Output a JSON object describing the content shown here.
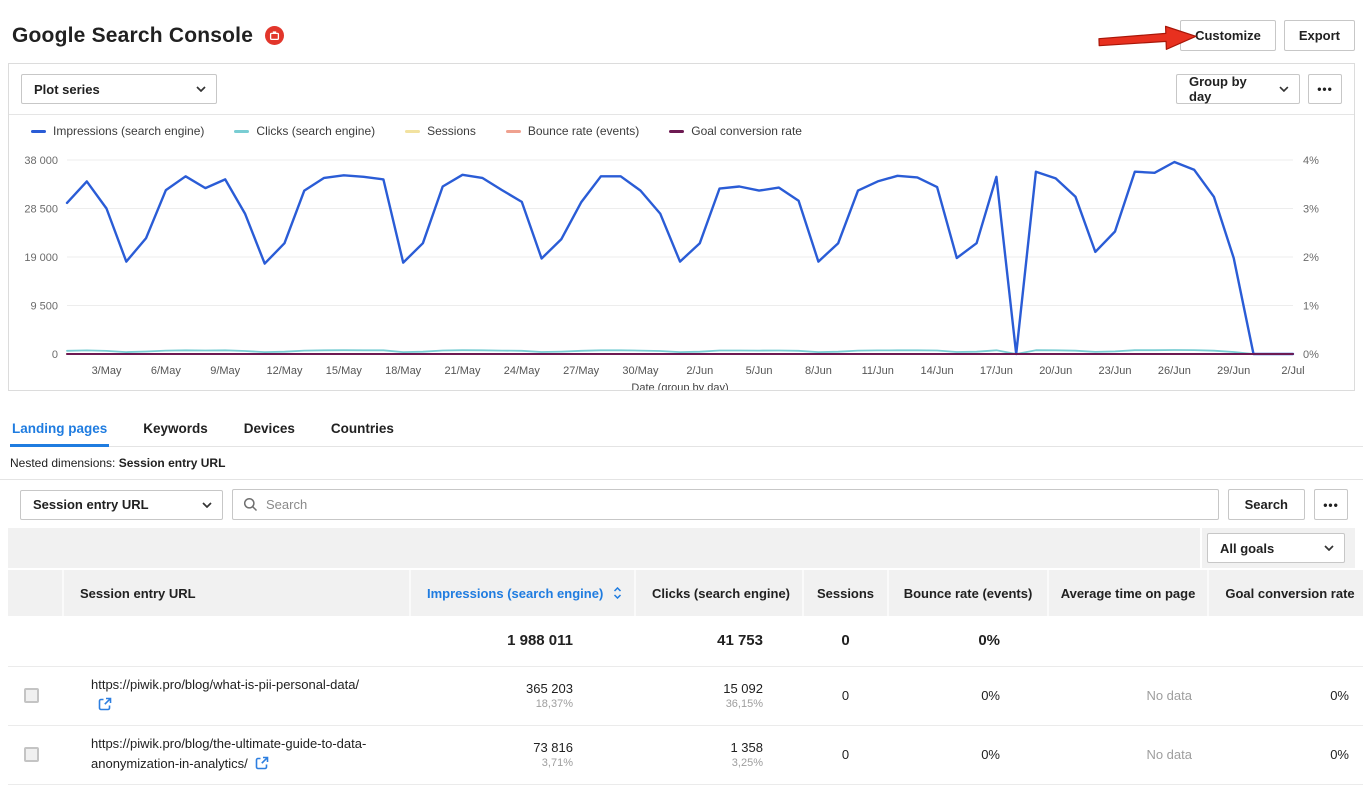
{
  "header": {
    "title": "Google Search Console",
    "customize_label": "Customize",
    "export_label": "Export"
  },
  "icons": {
    "more": "•••"
  },
  "chart_controls": {
    "plot_series": "Plot series",
    "group_by": "Group by day"
  },
  "chart_data": {
    "type": "line",
    "x_unit": "day",
    "x_range": "1/May – 2/Jul",
    "xlabel": "Date (group by day)",
    "x_tick_labels": [
      "3/May",
      "6/May",
      "9/May",
      "12/May",
      "15/May",
      "18/May",
      "21/May",
      "24/May",
      "27/May",
      "30/May",
      "2/Jun",
      "5/Jun",
      "8/Jun",
      "11/Jun",
      "14/Jun",
      "17/Jun",
      "20/Jun",
      "23/Jun",
      "26/Jun",
      "29/Jun",
      "2/Jul"
    ],
    "x_tick_first_index": 2,
    "x_tick_step": 3,
    "n_points": 63,
    "y_left": {
      "max": 38000,
      "ticks": [
        0,
        9500,
        19000,
        28500,
        38000
      ],
      "labels": [
        "0",
        "9 500",
        "19 000",
        "28 500",
        "38 000"
      ]
    },
    "y_right": {
      "max": 4,
      "ticks": [
        0,
        1,
        2,
        3,
        4
      ],
      "labels": [
        "0%",
        "1%",
        "2%",
        "3%",
        "4%"
      ]
    },
    "grid": true,
    "legend_position": "top",
    "series": [
      {
        "name": "Impressions (search engine)",
        "axis": "left",
        "color": "#2a5cd6",
        "width": 2.4,
        "values": [
          29600,
          33800,
          28500,
          18100,
          22700,
          32100,
          34800,
          32500,
          34200,
          27500,
          17700,
          21700,
          32000,
          34500,
          35000,
          34700,
          34200,
          17900,
          21700,
          32800,
          35100,
          34500,
          32100,
          29800,
          18700,
          22500,
          29700,
          34800,
          34800,
          32000,
          27500,
          18100,
          21700,
          32400,
          32800,
          32000,
          32600,
          30000,
          18100,
          21700,
          32000,
          33800,
          34900,
          34600,
          32700,
          18800,
          21700,
          34700,
          0,
          35700,
          34400,
          30800,
          20000,
          24000,
          35700,
          35500,
          37600,
          36100,
          30800,
          18800,
          0,
          0,
          0
        ]
      },
      {
        "name": "Clicks (search engine)",
        "axis": "left",
        "color": "#79cdd3",
        "width": 1.8,
        "values": [
          620,
          710,
          600,
          380,
          480,
          670,
          730,
          680,
          720,
          580,
          370,
          460,
          670,
          720,
          740,
          730,
          720,
          380,
          460,
          690,
          740,
          730,
          670,
          630,
          390,
          470,
          620,
          730,
          730,
          670,
          580,
          380,
          460,
          680,
          690,
          670,
          690,
          630,
          380,
          460,
          670,
          710,
          730,
          730,
          690,
          400,
          460,
          730,
          0,
          750,
          720,
          650,
          420,
          500,
          750,
          750,
          790,
          760,
          650,
          400,
          0,
          0,
          0
        ]
      },
      {
        "name": "Sessions",
        "axis": "left",
        "color": "#f2e2a0",
        "width": 1.8,
        "constant": 0
      },
      {
        "name": "Bounce rate (events)",
        "axis": "right",
        "color": "#efa18f",
        "width": 1.8,
        "constant": 0
      },
      {
        "name": "Goal conversion rate",
        "axis": "right",
        "color": "#6d1a52",
        "width": 2,
        "constant": 0
      }
    ]
  },
  "tabs": [
    {
      "label": "Landing pages",
      "active": true
    },
    {
      "label": "Keywords",
      "active": false
    },
    {
      "label": "Devices",
      "active": false
    },
    {
      "label": "Countries",
      "active": false
    }
  ],
  "nested_dimensions": {
    "prefix": "Nested dimensions:",
    "value": "Session entry URL"
  },
  "search": {
    "dimension": "Session entry URL",
    "placeholder": "Search",
    "button": "Search"
  },
  "goals": {
    "selected": "All goals"
  },
  "table": {
    "columns": [
      {
        "label": ""
      },
      {
        "label": "Session entry URL"
      },
      {
        "label": "Impressions (search engine)",
        "sorted": true
      },
      {
        "label": "Clicks (search engine)"
      },
      {
        "label": "Sessions"
      },
      {
        "label": "Bounce rate (events)"
      },
      {
        "label": "Average time on page"
      },
      {
        "label": "Goal conversion rate"
      }
    ],
    "summary": {
      "impressions": "1 988 011",
      "clicks": "41 753",
      "sessions": "0",
      "bounce_rate": "0%",
      "avg_time": "",
      "goal_cr": ""
    },
    "rows": [
      {
        "url": "https://piwik.pro/blog/what-is-pii-personal-data/",
        "impressions": "365 203",
        "impressions_share": "18,37%",
        "clicks": "15 092",
        "clicks_share": "36,15%",
        "sessions": "0",
        "bounce_rate": "0%",
        "avg_time": "No data",
        "goal_cr": "0%"
      },
      {
        "url": "https://piwik.pro/blog/the-ultimate-guide-to-data-anonymization-in-analytics/",
        "impressions": "73 816",
        "impressions_share": "3,71%",
        "clicks": "1 358",
        "clicks_share": "3,25%",
        "sessions": "0",
        "bounce_rate": "0%",
        "avg_time": "No data",
        "goal_cr": "0%"
      }
    ]
  },
  "colors": {
    "accent_blue": "#1f7ce0",
    "alert_red": "#e2362b",
    "arrow_red": "#e8301f",
    "chart_grid": "#ededed"
  }
}
